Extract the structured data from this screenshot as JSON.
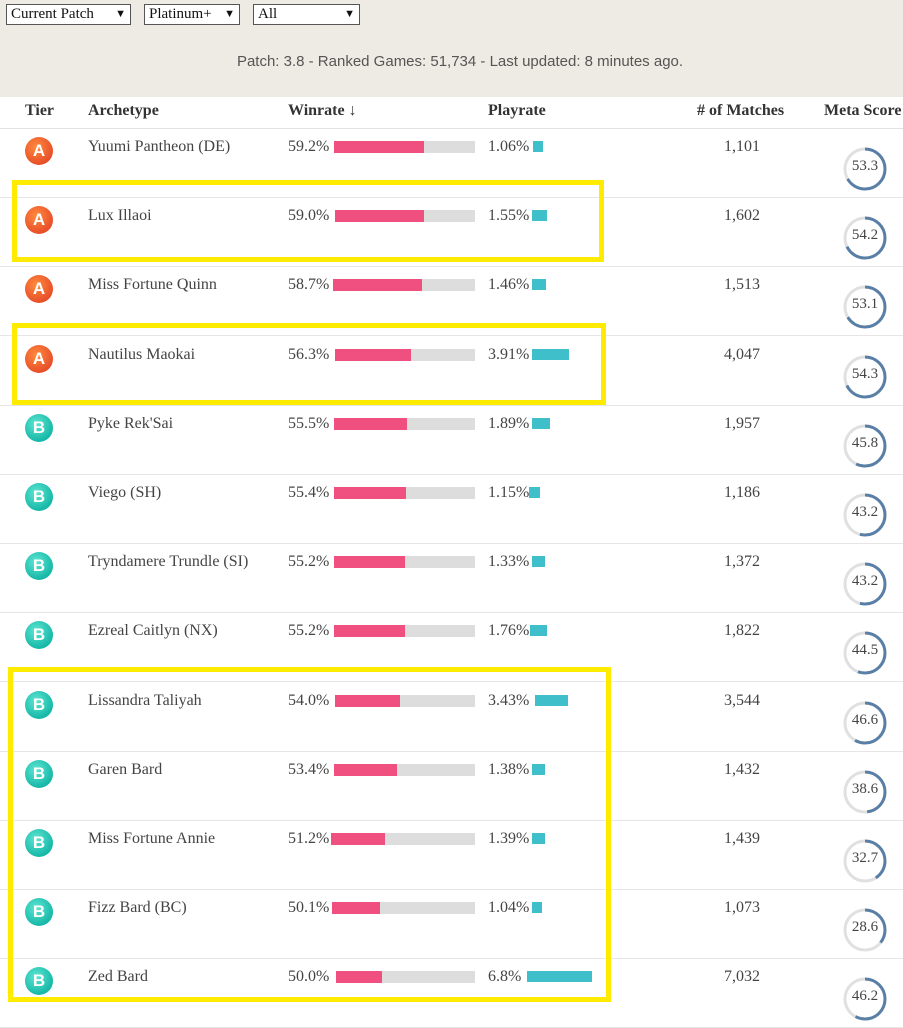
{
  "filters": [
    {
      "value": "Current Patch"
    },
    {
      "value": "Platinum+"
    },
    {
      "value": "All"
    }
  ],
  "info_text": "Patch: 3.8 - Ranked Games: 51,734 - Last updated: 8 minutes ago.",
  "columns": {
    "tier": "Tier",
    "archetype": "Archetype",
    "winrate": "Winrate ↓",
    "playrate": "Playrate",
    "matches": "# of Matches",
    "meta": "Meta Score"
  },
  "rows": [
    {
      "tier": "A",
      "archetype": "Yuumi Pantheon (DE)",
      "winrate": "59.2%",
      "winrate_value": 59.2,
      "playrate": "1.06%",
      "playrate_value": 1.06,
      "matches": "1,101",
      "meta": "53.3",
      "meta_value": 53.3
    },
    {
      "tier": "A",
      "archetype": "Lux Illaoi",
      "winrate": "59.0%",
      "winrate_value": 59.0,
      "playrate": "1.55%",
      "playrate_value": 1.55,
      "matches": "1,602",
      "meta": "54.2",
      "meta_value": 54.2
    },
    {
      "tier": "A",
      "archetype": "Miss Fortune Quinn",
      "winrate": "58.7%",
      "winrate_value": 58.7,
      "playrate": "1.46%",
      "playrate_value": 1.46,
      "matches": "1,513",
      "meta": "53.1",
      "meta_value": 53.1
    },
    {
      "tier": "A",
      "archetype": "Nautilus Maokai",
      "winrate": "56.3%",
      "winrate_value": 56.3,
      "playrate": "3.91%",
      "playrate_value": 3.91,
      "matches": "4,047",
      "meta": "54.3",
      "meta_value": 54.3
    },
    {
      "tier": "B",
      "archetype": "Pyke Rek'Sai",
      "winrate": "55.5%",
      "winrate_value": 55.5,
      "playrate": "1.89%",
      "playrate_value": 1.89,
      "matches": "1,957",
      "meta": "45.8",
      "meta_value": 45.8
    },
    {
      "tier": "B",
      "archetype": "Viego (SH)",
      "winrate": "55.4%",
      "winrate_value": 55.4,
      "playrate": "1.15%",
      "playrate_value": 1.15,
      "matches": "1,186",
      "meta": "43.2",
      "meta_value": 43.2
    },
    {
      "tier": "B",
      "archetype": "Tryndamere Trundle (SI)",
      "winrate": "55.2%",
      "winrate_value": 55.2,
      "playrate": "1.33%",
      "playrate_value": 1.33,
      "matches": "1,372",
      "meta": "43.2",
      "meta_value": 43.2
    },
    {
      "tier": "B",
      "archetype": "Ezreal Caitlyn (NX)",
      "winrate": "55.2%",
      "winrate_value": 55.2,
      "playrate": "1.76%",
      "playrate_value": 1.76,
      "matches": "1,822",
      "meta": "44.5",
      "meta_value": 44.5
    },
    {
      "tier": "B",
      "archetype": "Lissandra Taliyah",
      "winrate": "54.0%",
      "winrate_value": 54.0,
      "playrate": "3.43%",
      "playrate_value": 3.43,
      "matches": "3,544",
      "meta": "46.6",
      "meta_value": 46.6
    },
    {
      "tier": "B",
      "archetype": "Garen Bard",
      "winrate": "53.4%",
      "winrate_value": 53.4,
      "playrate": "1.38%",
      "playrate_value": 1.38,
      "matches": "1,432",
      "meta": "38.6",
      "meta_value": 38.6
    },
    {
      "tier": "B",
      "archetype": "Miss Fortune Annie",
      "winrate": "51.2%",
      "winrate_value": 51.2,
      "playrate": "1.39%",
      "playrate_value": 1.39,
      "matches": "1,439",
      "meta": "32.7",
      "meta_value": 32.7
    },
    {
      "tier": "B",
      "archetype": "Fizz Bard (BC)",
      "winrate": "50.1%",
      "winrate_value": 50.1,
      "playrate": "1.04%",
      "playrate_value": 1.04,
      "matches": "1,073",
      "meta": "28.6",
      "meta_value": 28.6
    },
    {
      "tier": "B",
      "archetype": "Zed Bard",
      "winrate": "50.0%",
      "winrate_value": 50.0,
      "playrate": "6.8%",
      "playrate_value": 6.8,
      "matches": "7,032",
      "meta": "46.2",
      "meta_value": 46.2
    }
  ],
  "colors": {
    "background_top": "#edebe3",
    "winrate_bar": "#f0507f",
    "playrate_bar": "#3fbfc9",
    "ring_arc": "#5a7fa6",
    "ring_track": "#e0e0e0",
    "highlight": "#ffeb00"
  }
}
